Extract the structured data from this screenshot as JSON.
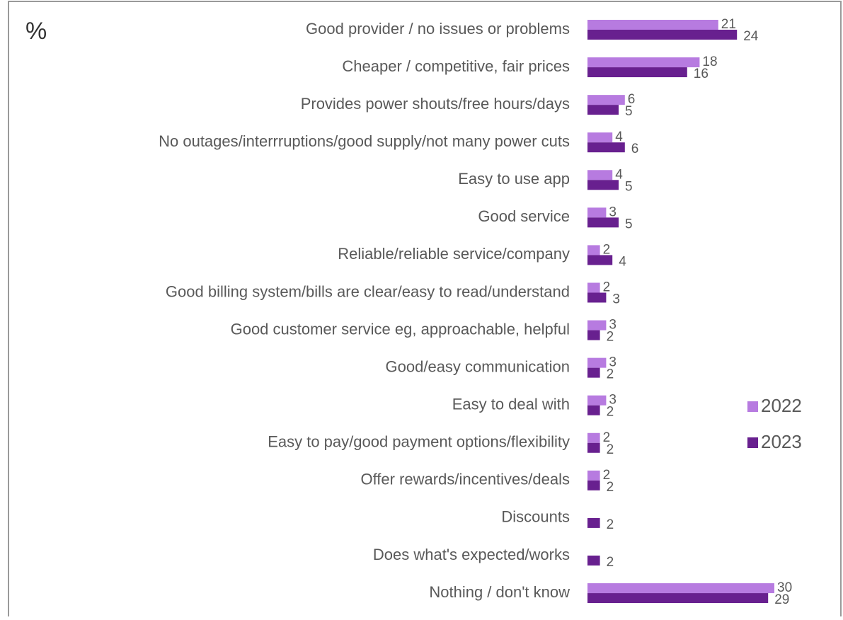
{
  "chart_data": {
    "type": "bar",
    "orientation": "horizontal",
    "title": "%",
    "categories": [
      "Good provider / no issues or problems",
      "Cheaper / competitive, fair prices",
      "Provides power shouts/free hours/days",
      "No outages/interrruptions/good supply/not many power cuts",
      "Easy to use app",
      "Good service",
      "Reliable/reliable service/company",
      "Good billing system/bills are clear/easy to read/understand",
      "Good customer service eg, approachable, helpful",
      "Good/easy communication",
      "Easy to deal with",
      "Easy to pay/good payment options/flexibility",
      "Offer rewards/incentives/deals",
      "Discounts",
      "Does what's expected/works",
      "Nothing / don't know"
    ],
    "series": [
      {
        "name": "2022",
        "color": "#b77be0",
        "values": [
          21,
          18,
          6,
          4,
          4,
          3,
          2,
          2,
          3,
          3,
          3,
          2,
          2,
          null,
          null,
          30
        ]
      },
      {
        "name": "2023",
        "color": "#68208f",
        "values": [
          24,
          16,
          5,
          6,
          5,
          5,
          4,
          3,
          2,
          2,
          2,
          2,
          2,
          2,
          2,
          29
        ]
      }
    ],
    "legend": "right"
  }
}
